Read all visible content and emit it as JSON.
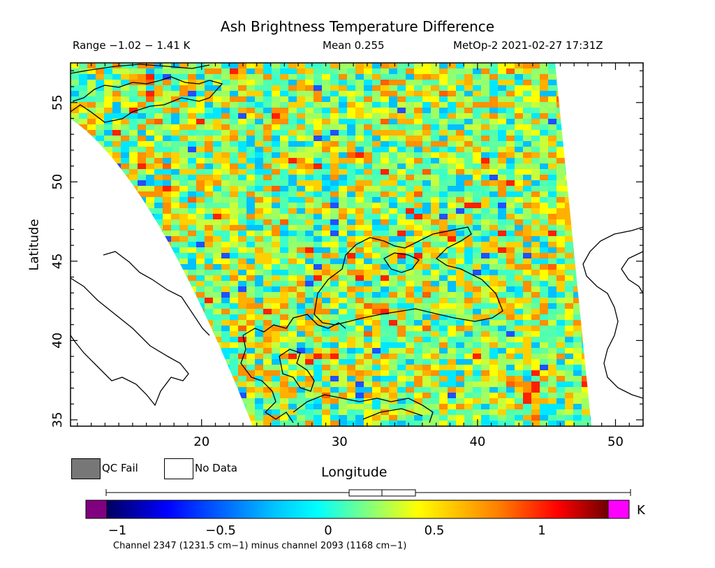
{
  "title": "Ash Brightness Temperature Difference",
  "subtitle": {
    "range": "Range −1.02 − 1.41 K",
    "mean": "Mean 0.255",
    "satellite_time": "MetOp-2 2021-02-27 17:31Z"
  },
  "map": {
    "xlabel": "Longitude",
    "ylabel": "Latitude",
    "lon_range": [
      10.5,
      52
    ],
    "lat_range": [
      34.6,
      57.5
    ],
    "lon_ticks": [
      "20",
      "30",
      "40",
      "50"
    ],
    "lat_ticks": [
      "35",
      "40",
      "45",
      "50",
      "55"
    ]
  },
  "legend": {
    "qc_fail": "QC Fail",
    "no_data": "No Data",
    "qc_fail_color": "#777777",
    "no_data_color": "#ffffff"
  },
  "colorbar": {
    "ticks": [
      "−1",
      "−0.5",
      "0",
      "0.5",
      "1"
    ],
    "unit": "K",
    "low_color": "#800080",
    "high_color": "#ff00ff"
  },
  "channel_note": "Channel 2347 (1231.5 cm−1) minus channel 2093 (1168 cm−1)"
}
